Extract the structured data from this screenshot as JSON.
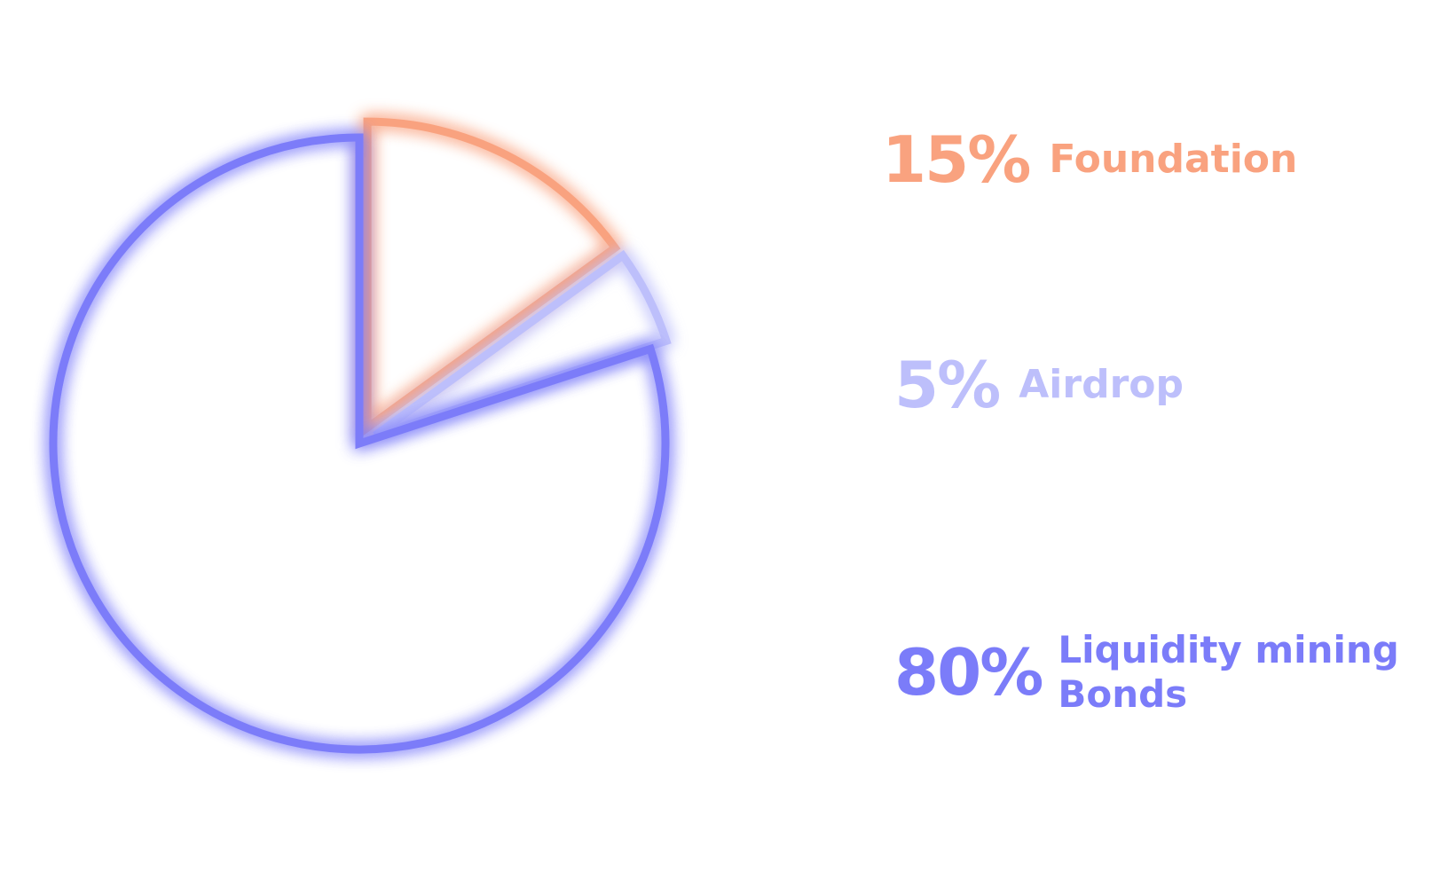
{
  "chart_data": {
    "type": "pie",
    "title": "",
    "slices": [
      {
        "label_lines": [
          "Foundation"
        ],
        "value": 15,
        "value_label": "15%",
        "color": "#F9A27F",
        "exploded": true
      },
      {
        "label_lines": [
          "Airdrop"
        ],
        "value": 5,
        "value_label": "5%",
        "color": "#BDBFFB",
        "exploded": true
      },
      {
        "label_lines": [
          "Liquidity mining",
          "Bonds"
        ],
        "value": 80,
        "value_label": "80%",
        "color": "#7B7CF9",
        "exploded": false
      }
    ],
    "style": "outlined-glow",
    "legend": "right"
  }
}
